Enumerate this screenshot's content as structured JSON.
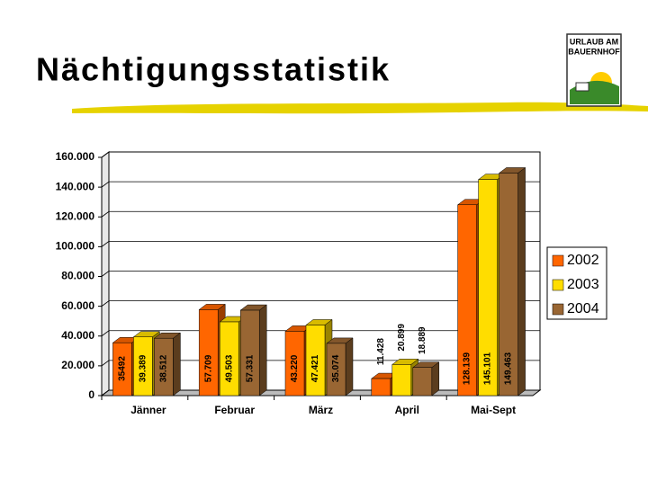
{
  "logo": [
    "URLAUB AM",
    "BAUERNHOF"
  ],
  "chart_data": {
    "type": "bar3d",
    "title": "Nächtigungsstatistik",
    "categories": [
      "Jänner",
      "Februar",
      "März",
      "April",
      "Mai-Sept"
    ],
    "series": [
      {
        "name": "2002",
        "color": "#ff6600",
        "values": [
          35492,
          57709,
          43220,
          11428,
          128139
        ],
        "value_labels": [
          "35492",
          "57.709",
          "43.220",
          "11.428",
          "128.139"
        ]
      },
      {
        "name": "2003",
        "color": "#ffdd00",
        "values": [
          39389,
          49503,
          47421,
          20899,
          145101
        ],
        "value_labels": [
          "39.389",
          "49.503",
          "47.421",
          "20.899",
          "145.101"
        ]
      },
      {
        "name": "2004",
        "color": "#996633",
        "values": [
          38512,
          57331,
          35074,
          18889,
          149463
        ],
        "value_labels": [
          "38.512",
          "57.331",
          "35.074",
          "18.889",
          "149.463"
        ]
      }
    ],
    "ylim": [
      0,
      160000
    ],
    "yticks": [
      0,
      {
        "value": 20000,
        "label": "20.000"
      },
      {
        "value": 40000,
        "label": "40.000"
      },
      {
        "value": 60000,
        "label": "60.000"
      },
      {
        "value": 80000,
        "label": "80.000"
      },
      {
        "value": 100000,
        "label": "100.000"
      },
      {
        "value": 120000,
        "label": "120.000"
      },
      {
        "value": 140000,
        "label": "140.000"
      },
      {
        "value": 160000,
        "label": "160.000"
      }
    ],
    "grid": true,
    "legend": "right"
  }
}
